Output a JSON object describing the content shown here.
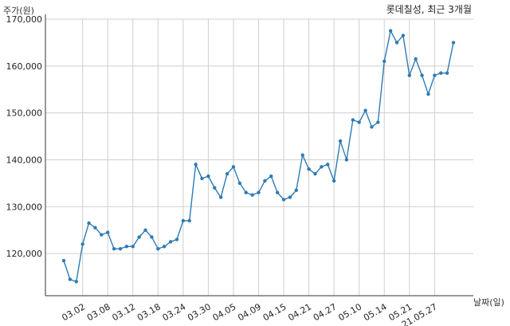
{
  "chart_data": {
    "type": "line",
    "title": "롯데칠성, 최근 3개월",
    "ylabel": "주가(원)",
    "xlabel": "날짜(일)",
    "ylim": [
      111000,
      170000
    ],
    "yticks": [
      120000,
      130000,
      140000,
      150000,
      160000,
      170000
    ],
    "ytick_labels": [
      "120,000",
      "130,000",
      "140,000",
      "150,000",
      "160,000",
      "170,000"
    ],
    "xtick_labels": [
      "03.02",
      "03.08",
      "03.12",
      "03.18",
      "03.24",
      "03.30",
      "04.05",
      "04.09",
      "04.15",
      "04.21",
      "04.27",
      "05.10",
      "05.14",
      "05.21",
      "21.05.27"
    ],
    "xtick_indices": [
      3,
      7,
      11,
      15,
      19,
      23,
      27,
      31,
      35,
      39,
      43,
      47,
      51,
      55,
      59
    ],
    "grid": true,
    "color": "#2e7bb4",
    "series": [
      {
        "name": "",
        "values": [
          118500,
          114500,
          114000,
          122000,
          126500,
          125500,
          124000,
          124500,
          121000,
          121000,
          121500,
          121500,
          123500,
          125000,
          123500,
          121000,
          121500,
          122500,
          123000,
          127000,
          127000,
          139000,
          136000,
          136500,
          134000,
          132000,
          137000,
          138500,
          135000,
          133000,
          132500,
          133000,
          135500,
          136500,
          133000,
          131500,
          132000,
          133500,
          141000,
          138000,
          137000,
          138500,
          139000,
          135500,
          144000,
          140000,
          148500,
          148000,
          150500,
          147000,
          148000,
          161000,
          167500,
          165000,
          166500,
          158000,
          161500,
          158000,
          154000,
          158000,
          158500,
          158500,
          165000
        ]
      }
    ]
  }
}
